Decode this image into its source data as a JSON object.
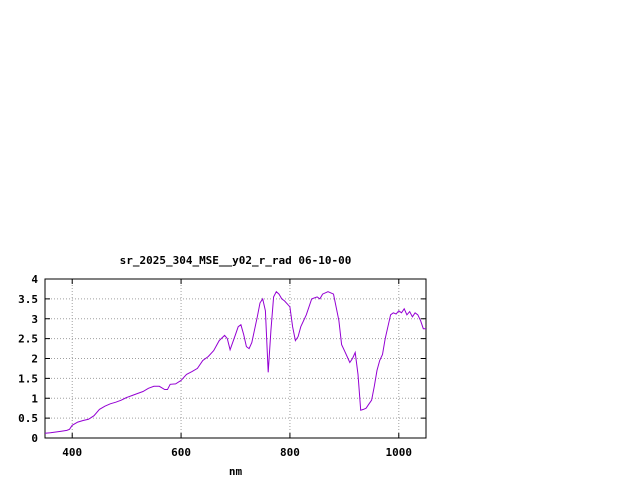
{
  "chart_data": {
    "type": "line",
    "title": "sr_2025_304_MSE__y02_r_rad 06-10-00",
    "xlabel": "nm",
    "ylabel": "",
    "xlim": [
      350,
      1050
    ],
    "ylim": [
      0,
      4
    ],
    "xticks": [
      400,
      600,
      800,
      1000
    ],
    "yticks": [
      0,
      0.5,
      1,
      1.5,
      2,
      2.5,
      3,
      3.5,
      4
    ],
    "grid": true,
    "series_color": "#9400d3",
    "x": [
      350,
      360,
      370,
      380,
      390,
      395,
      400,
      410,
      420,
      430,
      440,
      450,
      460,
      470,
      480,
      490,
      500,
      510,
      520,
      530,
      540,
      550,
      560,
      570,
      575,
      580,
      590,
      600,
      610,
      620,
      630,
      640,
      650,
      660,
      670,
      680,
      685,
      690,
      700,
      705,
      710,
      715,
      720,
      725,
      730,
      740,
      745,
      750,
      755,
      760,
      765,
      770,
      775,
      780,
      785,
      790,
      800,
      805,
      810,
      815,
      820,
      830,
      840,
      850,
      855,
      860,
      870,
      880,
      890,
      895,
      900,
      905,
      910,
      915,
      920,
      925,
      930,
      935,
      940,
      945,
      950,
      955,
      960,
      965,
      970,
      975,
      980,
      985,
      990,
      995,
      1000,
      1005,
      1010,
      1015,
      1020,
      1025,
      1030,
      1035,
      1040,
      1045,
      1050
    ],
    "y": [
      0.12,
      0.13,
      0.15,
      0.17,
      0.19,
      0.22,
      0.32,
      0.4,
      0.44,
      0.47,
      0.56,
      0.72,
      0.8,
      0.86,
      0.9,
      0.95,
      1.02,
      1.07,
      1.12,
      1.17,
      1.25,
      1.3,
      1.3,
      1.22,
      1.22,
      1.35,
      1.36,
      1.45,
      1.6,
      1.67,
      1.75,
      1.95,
      2.05,
      2.2,
      2.45,
      2.58,
      2.5,
      2.22,
      2.6,
      2.8,
      2.85,
      2.6,
      2.3,
      2.25,
      2.4,
      3.05,
      3.4,
      3.5,
      3.2,
      1.65,
      2.7,
      3.55,
      3.68,
      3.62,
      3.5,
      3.45,
      3.3,
      2.8,
      2.45,
      2.55,
      2.8,
      3.1,
      3.5,
      3.55,
      3.5,
      3.62,
      3.68,
      3.62,
      2.95,
      2.35,
      2.2,
      2.05,
      1.9,
      2.0,
      2.15,
      1.6,
      0.7,
      0.72,
      0.75,
      0.85,
      0.95,
      1.3,
      1.7,
      1.95,
      2.1,
      2.5,
      2.8,
      3.1,
      3.15,
      3.12,
      3.2,
      3.15,
      3.25,
      3.1,
      3.18,
      3.05,
      3.15,
      3.1,
      2.95,
      2.75,
      2.75
    ]
  }
}
